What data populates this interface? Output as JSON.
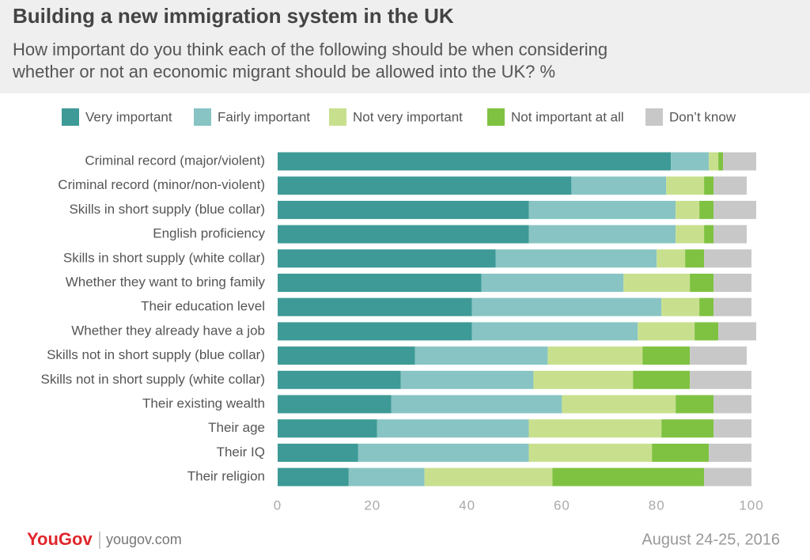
{
  "chart_data": {
    "type": "bar",
    "orientation": "horizontal",
    "stacked": true,
    "title": "Building a new immigration system in the UK",
    "subtitle": [
      "How important do you think each of the following should be when considering",
      "whether or not an economic migrant should be allowed into the UK? %"
    ],
    "categories": [
      "Criminal record (major/violent)",
      "Criminal record (minor/non-violent)",
      "Skills in short supply (blue collar)",
      "English proficiency",
      "Skills in short supply (white collar)",
      "Whether they want to bring family",
      "Their education level",
      "Whether they already have a job",
      "Skills not in short supply (blue collar)",
      "Skills not in short supply (white collar)",
      "Their existing wealth",
      "Their age",
      "Their IQ",
      "Their religion"
    ],
    "series": [
      {
        "name": "Very important",
        "color": "#3d9a96",
        "values": [
          83,
          62,
          53,
          53,
          46,
          43,
          41,
          41,
          29,
          26,
          24,
          21,
          17,
          15
        ]
      },
      {
        "name": "Fairly important",
        "color": "#88c4c4",
        "values": [
          8,
          20,
          31,
          31,
          34,
          30,
          40,
          35,
          28,
          28,
          36,
          32,
          36,
          16
        ]
      },
      {
        "name": "Not very important",
        "color": "#c8e08e",
        "values": [
          2,
          8,
          5,
          6,
          6,
          14,
          8,
          12,
          20,
          21,
          24,
          28,
          26,
          27
        ]
      },
      {
        "name": "Not important at all",
        "color": "#7fc241",
        "values": [
          1,
          2,
          3,
          2,
          4,
          5,
          3,
          5,
          10,
          12,
          8,
          11,
          12,
          32
        ]
      },
      {
        "name": "Don’t know",
        "color": "#c8c8c8",
        "values": [
          7,
          7,
          9,
          7,
          10,
          8,
          8,
          8,
          12,
          13,
          8,
          8,
          9,
          10
        ]
      }
    ],
    "xlim": [
      0,
      100
    ],
    "xticks": [
      0,
      20,
      40,
      60,
      80,
      100
    ],
    "grid": false,
    "brand": "YouGov",
    "site": "yougov.com",
    "date": "August 24-25, 2016"
  }
}
